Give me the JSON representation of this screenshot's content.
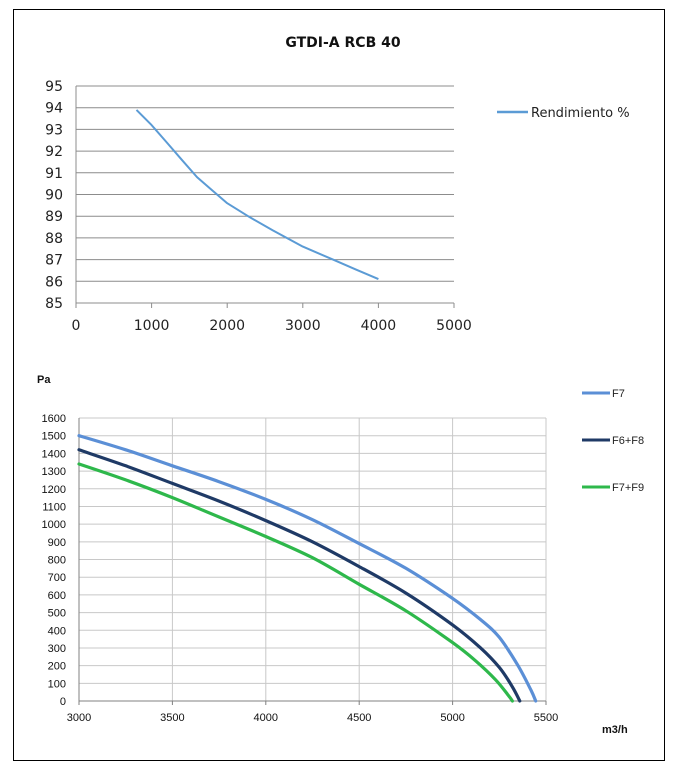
{
  "chart_data": [
    {
      "type": "line",
      "title": "GTDI-A RCB 40",
      "xlabel": "",
      "ylabel": "",
      "xlim": [
        0,
        5000
      ],
      "ylim": [
        85,
        95
      ],
      "x_ticks": [
        "0",
        "1000",
        "2000",
        "3000",
        "4000",
        "5000"
      ],
      "y_ticks": [
        "85",
        "86",
        "87",
        "88",
        "89",
        "90",
        "91",
        "92",
        "93",
        "94",
        "95"
      ],
      "grid": "horizontal",
      "legend_position": "right",
      "series": [
        {
          "name": "Rendimiento %",
          "color": "#5b9bd5",
          "points": [
            [
              800,
              93.9
            ],
            [
              1000,
              93.2
            ],
            [
              1200,
              92.4
            ],
            [
              1400,
              91.6
            ],
            [
              1600,
              90.8
            ],
            [
              1800,
              90.2
            ],
            [
              2000,
              89.6
            ],
            [
              2300,
              88.95
            ],
            [
              2600,
              88.35
            ],
            [
              3000,
              87.6
            ],
            [
              3400,
              87.0
            ],
            [
              3700,
              86.55
            ],
            [
              4000,
              86.1
            ]
          ]
        }
      ]
    },
    {
      "type": "line",
      "title": "",
      "xlabel": "m3/h",
      "ylabel": "Pa",
      "xlim": [
        3000,
        5500
      ],
      "ylim": [
        0,
        1600
      ],
      "x_ticks": [
        "3000",
        "3500",
        "4000",
        "4500",
        "5000",
        "5500"
      ],
      "y_ticks": [
        "0",
        "100",
        "200",
        "300",
        "400",
        "500",
        "600",
        "700",
        "800",
        "900",
        "1000",
        "1100",
        "1200",
        "1300",
        "1400",
        "1500",
        "1600"
      ],
      "grid": "both",
      "legend_position": "right",
      "series": [
        {
          "name": "F7",
          "color": "#5b8fd6",
          "points": [
            [
              3000,
              1500
            ],
            [
              3250,
              1420
            ],
            [
              3500,
              1330
            ],
            [
              3750,
              1240
            ],
            [
              4000,
              1140
            ],
            [
              4250,
              1025
            ],
            [
              4500,
              890
            ],
            [
              4750,
              750
            ],
            [
              5000,
              580
            ],
            [
              5150,
              460
            ],
            [
              5250,
              360
            ],
            [
              5350,
              200
            ],
            [
              5420,
              60
            ],
            [
              5445,
              0
            ]
          ]
        },
        {
          "name": "F6+F8",
          "color": "#1f3a66",
          "points": [
            [
              3000,
              1420
            ],
            [
              3250,
              1330
            ],
            [
              3500,
              1230
            ],
            [
              3750,
              1130
            ],
            [
              4000,
              1020
            ],
            [
              4250,
              900
            ],
            [
              4500,
              760
            ],
            [
              4750,
              610
            ],
            [
              5000,
              430
            ],
            [
              5150,
              300
            ],
            [
              5250,
              190
            ],
            [
              5320,
              80
            ],
            [
              5360,
              0
            ]
          ]
        },
        {
          "name": "F7+F9",
          "color": "#2eb84b",
          "points": [
            [
              3000,
              1340
            ],
            [
              3250,
              1250
            ],
            [
              3500,
              1150
            ],
            [
              3750,
              1040
            ],
            [
              4000,
              930
            ],
            [
              4250,
              810
            ],
            [
              4500,
              660
            ],
            [
              4750,
              510
            ],
            [
              5000,
              330
            ],
            [
              5120,
              230
            ],
            [
              5230,
              120
            ],
            [
              5300,
              30
            ],
            [
              5320,
              0
            ]
          ]
        }
      ]
    }
  ]
}
